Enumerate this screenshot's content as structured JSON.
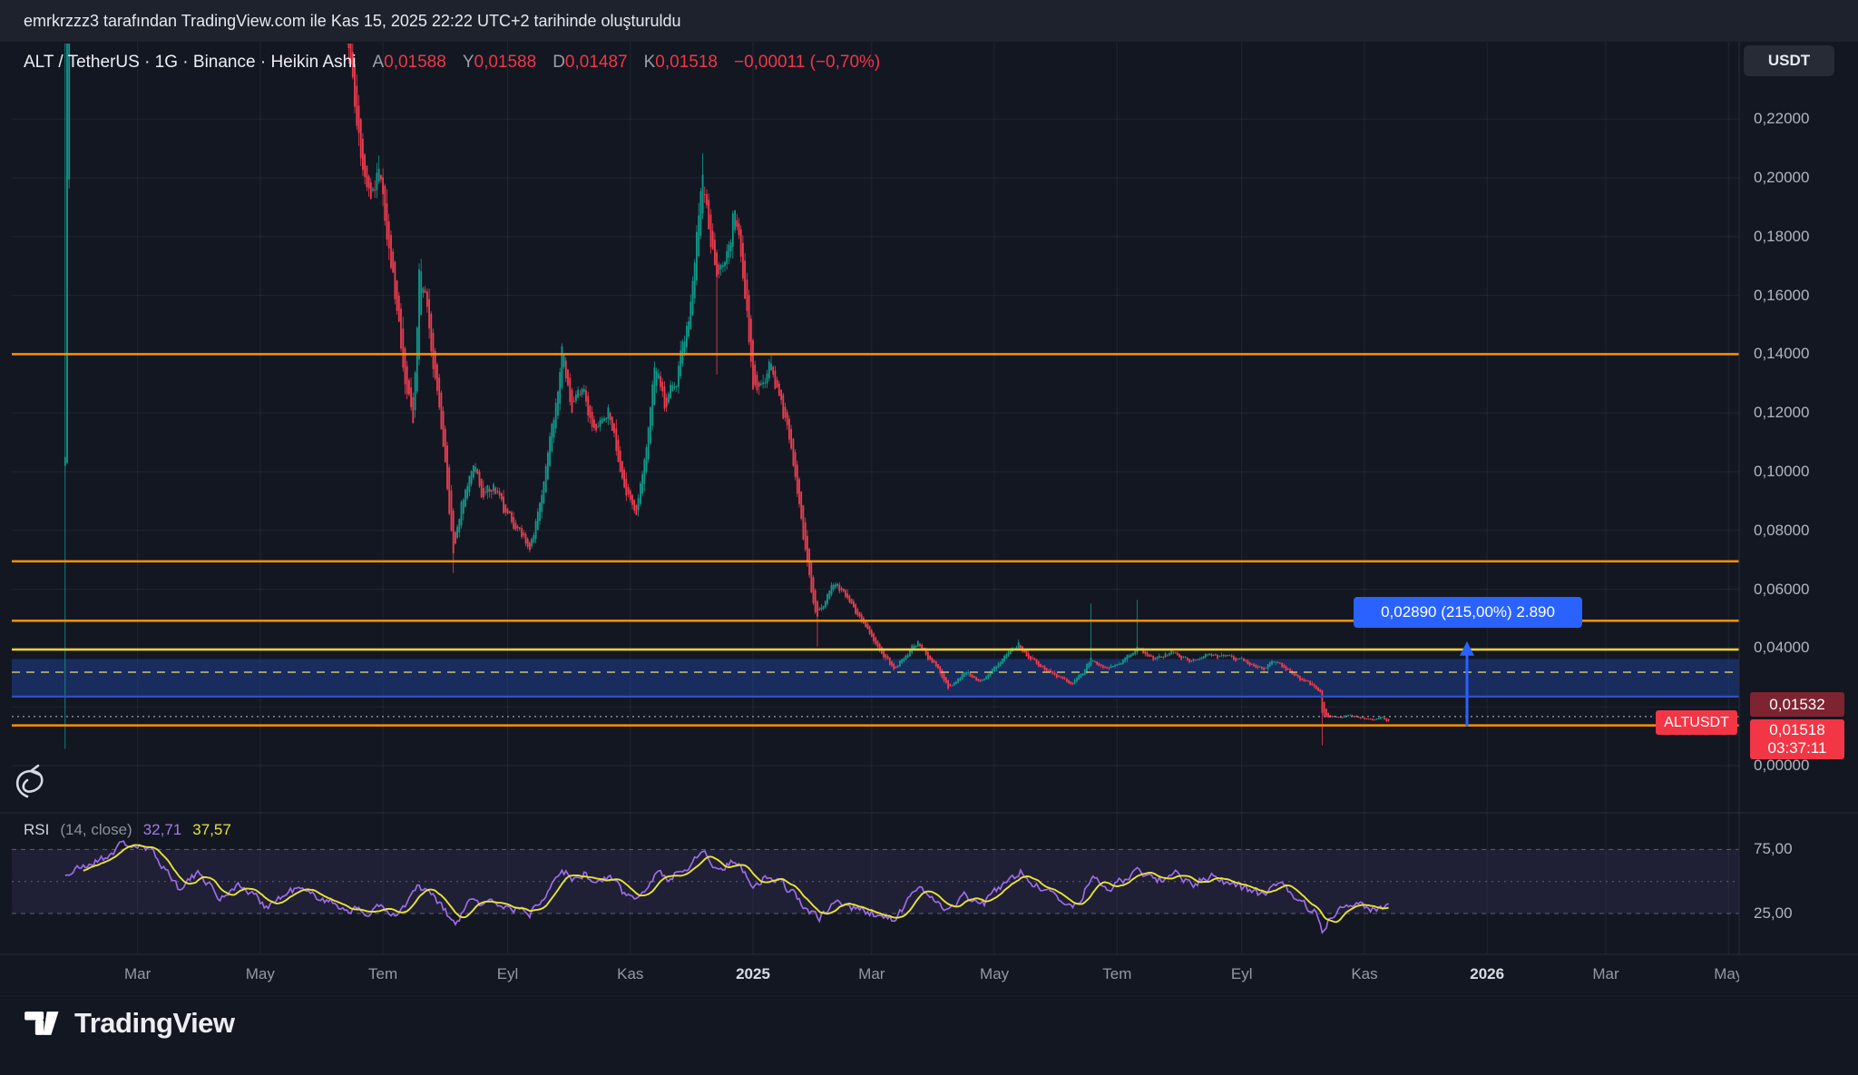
{
  "attribution": {
    "text": "emrkrzzz3 tarafından TradingView.com ile Kas 15, 2025 22:22 UTC+2 tarihinde oluşturuldu"
  },
  "header": {
    "symbol_title": "ALT / TetherUS · 1G · Binance · Heikin Ashi",
    "ohlc": [
      {
        "label": "A",
        "value": "0,01588"
      },
      {
        "label": "Y",
        "value": "0,01588"
      },
      {
        "label": "D",
        "value": "0,01487"
      },
      {
        "label": "K",
        "value": "0,01518"
      }
    ],
    "change": "−0,00011 (−0,70%)",
    "currency_button": "USDT"
  },
  "price_scale": {
    "ticks": [
      {
        "text": "0,22000",
        "price": 0.22
      },
      {
        "text": "0,20000",
        "price": 0.2
      },
      {
        "text": "0,18000",
        "price": 0.18
      },
      {
        "text": "0,16000",
        "price": 0.16
      },
      {
        "text": "0,14000",
        "price": 0.14
      },
      {
        "text": "0,12000",
        "price": 0.12
      },
      {
        "text": "0,10000",
        "price": 0.1
      },
      {
        "text": "0,08000",
        "price": 0.08
      },
      {
        "text": "0,06000",
        "price": 0.06
      },
      {
        "text": "0,04000",
        "price": 0.04
      },
      {
        "text": "0,00000",
        "price": 0.0
      }
    ],
    "badges": {
      "line_label": "0,01532",
      "last_price": "0,01518",
      "countdown": "03:37:11",
      "symbol": "ALTUSDT"
    }
  },
  "rsi": {
    "title": "RSI",
    "params": "(14, close)",
    "value_main": "32,71",
    "value_ma": "37,57",
    "ticks": [
      {
        "text": "75,00",
        "value": 75
      },
      {
        "text": "25,00",
        "value": 25
      }
    ]
  },
  "measure": {
    "label": "0,02890 (215,00%) 2.890",
    "from_price": 0.01344,
    "to_price": 0.04234,
    "day": 697
  },
  "time_axis": {
    "ticks": [
      {
        "label": "Mar",
        "day": 36
      },
      {
        "label": "May",
        "day": 97
      },
      {
        "label": "Tem",
        "day": 158
      },
      {
        "label": "Eyl",
        "day": 220
      },
      {
        "label": "Kas",
        "day": 281
      },
      {
        "label": "2025",
        "day": 342,
        "major": true
      },
      {
        "label": "Mar",
        "day": 401
      },
      {
        "label": "May",
        "day": 462
      },
      {
        "label": "Tem",
        "day": 523
      },
      {
        "label": "Eyl",
        "day": 585
      },
      {
        "label": "Kas",
        "day": 646
      },
      {
        "label": "2026",
        "day": 707,
        "major": true
      },
      {
        "label": "Mar",
        "day": 766
      },
      {
        "label": "May",
        "day": 827
      }
    ]
  },
  "logo": {
    "text": "TradingView"
  },
  "colors": {
    "background": "#131722",
    "panel": "#1e222d",
    "up": "#109a8c",
    "down": "#ef3d4f",
    "orange_level": "#ff9100",
    "yellow_level": "#f5d327",
    "yellow_dashed": "#cdc06d",
    "blue_level": "#2b50c9",
    "zone_fill": "rgba(29,65,154,0.5)",
    "measure_blue": "#2962ff",
    "rsi_line": "#9b6ce6",
    "rsi_ma": "#e8e337",
    "badge_red": "#f23645",
    "badge_maroon": "#7e2430",
    "grid": "rgba(255,255,255,0.06)"
  },
  "chart_data": {
    "type": "candlestick",
    "meta": {
      "pair": "ALT / TetherUS",
      "symbol": "ALTUSDT",
      "interval": "1G",
      "exchange": "Binance",
      "chart_style": "Heikin Ashi",
      "quote_currency": "USDT",
      "author": "emrkrzzz3",
      "created": "Kas 15, 2025 22:22 UTC+2",
      "last_ohlc": {
        "open": 0.01588,
        "high": 0.01588,
        "low": 0.01487,
        "close": 0.01518,
        "change": -0.00011,
        "change_pct": -0.7
      }
    },
    "x_axis": {
      "start_date": "2024-01-25",
      "last_candle_date": "2025-11-14",
      "visible_end": "2026-05-15",
      "days_total": 659
    },
    "y_axis": {
      "min": 0.0,
      "max": 0.2457,
      "tick_interval": 0.02
    },
    "close_anchors": [
      [
        0,
        0.105
      ],
      [
        1,
        0.295
      ],
      [
        20,
        0.4
      ],
      [
        35,
        0.5
      ],
      [
        50,
        0.42
      ],
      [
        70,
        0.34
      ],
      [
        95,
        0.3
      ],
      [
        120,
        0.275
      ],
      [
        135,
        0.262
      ],
      [
        140,
        0.243
      ],
      [
        146,
        0.212
      ],
      [
        151,
        0.193
      ],
      [
        156,
        0.204
      ],
      [
        161,
        0.176
      ],
      [
        166,
        0.15
      ],
      [
        170,
        0.128
      ],
      [
        173,
        0.118
      ],
      [
        176,
        0.168
      ],
      [
        181,
        0.15
      ],
      [
        186,
        0.121
      ],
      [
        190,
        0.095
      ],
      [
        193,
        0.0705
      ],
      [
        197,
        0.09
      ],
      [
        203,
        0.102
      ],
      [
        208,
        0.09
      ],
      [
        213,
        0.096
      ],
      [
        219,
        0.085
      ],
      [
        225,
        0.081
      ],
      [
        231,
        0.0727
      ],
      [
        238,
        0.096
      ],
      [
        243,
        0.118
      ],
      [
        247,
        0.143
      ],
      [
        252,
        0.12
      ],
      [
        258,
        0.127
      ],
      [
        264,
        0.112
      ],
      [
        270,
        0.122
      ],
      [
        276,
        0.101
      ],
      [
        284,
        0.0846
      ],
      [
        289,
        0.11
      ],
      [
        293,
        0.134
      ],
      [
        298,
        0.122
      ],
      [
        304,
        0.132
      ],
      [
        310,
        0.154
      ],
      [
        314,
        0.178
      ],
      [
        317,
        0.205
      ],
      [
        320,
        0.185
      ],
      [
        324,
        0.163
      ],
      [
        328,
        0.172
      ],
      [
        333,
        0.19
      ],
      [
        338,
        0.16
      ],
      [
        342,
        0.128
      ],
      [
        347,
        0.131
      ],
      [
        351,
        0.137
      ],
      [
        356,
        0.122
      ],
      [
        361,
        0.108
      ],
      [
        366,
        0.082
      ],
      [
        371,
        0.06
      ],
      [
        374,
        0.0505
      ],
      [
        379,
        0.058
      ],
      [
        383,
        0.062
      ],
      [
        389,
        0.0555
      ],
      [
        394,
        0.05
      ],
      [
        398,
        0.047
      ],
      [
        403,
        0.042
      ],
      [
        408,
        0.0365
      ],
      [
        412,
        0.0325
      ],
      [
        417,
        0.037
      ],
      [
        421,
        0.04
      ],
      [
        424,
        0.0423
      ],
      [
        429,
        0.037
      ],
      [
        433,
        0.034
      ],
      [
        437,
        0.029
      ],
      [
        439,
        0.0263
      ],
      [
        444,
        0.03
      ],
      [
        448,
        0.032
      ],
      [
        453,
        0.0285
      ],
      [
        457,
        0.029
      ],
      [
        461,
        0.033
      ],
      [
        466,
        0.036
      ],
      [
        471,
        0.039
      ],
      [
        474,
        0.0413
      ],
      [
        479,
        0.037
      ],
      [
        483,
        0.035
      ],
      [
        488,
        0.0325
      ],
      [
        492,
        0.031
      ],
      [
        497,
        0.029
      ],
      [
        501,
        0.0283
      ],
      [
        506,
        0.031
      ],
      [
        510,
        0.036
      ],
      [
        514,
        0.034
      ],
      [
        518,
        0.0335
      ],
      [
        523,
        0.035
      ],
      [
        528,
        0.037
      ],
      [
        533,
        0.04
      ],
      [
        538,
        0.0375
      ],
      [
        542,
        0.036
      ],
      [
        547,
        0.0375
      ],
      [
        551,
        0.0385
      ],
      [
        556,
        0.0365
      ],
      [
        560,
        0.0355
      ],
      [
        564,
        0.037
      ],
      [
        569,
        0.0386
      ],
      [
        573,
        0.0372
      ],
      [
        578,
        0.0365
      ],
      [
        582,
        0.0358
      ],
      [
        587,
        0.0352
      ],
      [
        591,
        0.034
      ],
      [
        595,
        0.0332
      ],
      [
        600,
        0.0345
      ],
      [
        604,
        0.0355
      ],
      [
        609,
        0.032
      ],
      [
        613,
        0.0298
      ],
      [
        618,
        0.028
      ],
      [
        622,
        0.0262
      ],
      [
        624,
        0.0256
      ],
      [
        625,
        0.018
      ],
      [
        627,
        0.0165
      ],
      [
        630,
        0.0162
      ],
      [
        634,
        0.0168
      ],
      [
        639,
        0.0172
      ],
      [
        643,
        0.0165
      ],
      [
        648,
        0.016
      ],
      [
        651,
        0.0158
      ],
      [
        654,
        0.0163
      ],
      [
        658,
        0.01518
      ]
    ],
    "events": [
      {
        "day": 0,
        "o": 0.102,
        "h": 0.26,
        "l": 0.0057,
        "c": 0.105,
        "note": "listing-day full-range wick"
      },
      {
        "day": 193,
        "l": 0.0655,
        "note": "Aug 2024 capitulation wick"
      },
      {
        "day": 317,
        "h": 0.2084,
        "note": "Dec 2024 cycle top"
      },
      {
        "day": 324,
        "l": 0.133
      },
      {
        "day": 374,
        "l": 0.0405
      },
      {
        "day": 510,
        "h": 0.0552,
        "note": "Jun 2025 spike"
      },
      {
        "day": 533,
        "h": 0.0564,
        "note": "Jul 2025 spike"
      },
      {
        "day": 625,
        "o": 0.0256,
        "h": 0.0258,
        "l": 0.0069,
        "c": 0.018,
        "note": "Oct 10 2025 crash wick"
      },
      {
        "day": 658,
        "o": 0.01588,
        "h": 0.01588,
        "l": 0.01487,
        "c": 0.01518,
        "note": "last candle"
      }
    ],
    "levels": [
      {
        "price": 0.14,
        "color": "#ff9100",
        "style": "solid",
        "width": 2.5
      },
      {
        "price": 0.0695,
        "color": "#ff9100",
        "style": "solid",
        "width": 2.5
      },
      {
        "price": 0.0493,
        "color": "#ff9100",
        "style": "solid",
        "width": 2.5
      },
      {
        "price": 0.0395,
        "color": "#f5d327",
        "style": "solid",
        "width": 2.6
      },
      {
        "price": 0.0318,
        "color": "#cdc06d",
        "style": "dashed",
        "width": 1.6
      },
      {
        "price": 0.0235,
        "color": "#2b50c9",
        "style": "solid",
        "width": 2.2
      },
      {
        "price": 0.0167,
        "color": "#9aa0aa",
        "style": "dotted",
        "width": 1.2
      },
      {
        "price": 0.0137,
        "color": "#ff9100",
        "style": "solid",
        "width": 2.5
      }
    ],
    "zone": {
      "top": 0.0363,
      "bottom": 0.0235,
      "fill": "rgba(29,65,154,0.5)"
    },
    "rsi_panel": {
      "indicator": "RSI (14, close)",
      "upper_band": 75,
      "middle": 50,
      "lower_band": 25,
      "last": 32.71,
      "ma_last": 37.57,
      "anchors": [
        [
          0,
          55
        ],
        [
          10,
          62
        ],
        [
          21,
          70
        ],
        [
          29,
          80
        ],
        [
          38,
          76
        ],
        [
          44,
          72
        ],
        [
          50,
          60
        ],
        [
          56,
          46
        ],
        [
          62,
          52
        ],
        [
          68,
          56
        ],
        [
          77,
          36
        ],
        [
          85,
          48
        ],
        [
          93,
          40
        ],
        [
          100,
          31
        ],
        [
          108,
          38
        ],
        [
          115,
          45
        ],
        [
          121,
          40
        ],
        [
          127,
          38
        ],
        [
          133,
          33
        ],
        [
          138,
          30
        ],
        [
          145,
          27
        ],
        [
          150,
          24
        ],
        [
          156,
          33
        ],
        [
          162,
          21
        ],
        [
          168,
          28
        ],
        [
          175,
          46
        ],
        [
          181,
          40
        ],
        [
          186,
          33
        ],
        [
          191,
          22
        ],
        [
          194,
          15
        ],
        [
          199,
          30
        ],
        [
          203,
          36
        ],
        [
          208,
          31
        ],
        [
          213,
          35
        ],
        [
          219,
          30
        ],
        [
          225,
          28
        ],
        [
          231,
          25
        ],
        [
          238,
          40
        ],
        [
          247,
          62
        ],
        [
          252,
          50
        ],
        [
          258,
          56
        ],
        [
          264,
          48
        ],
        [
          270,
          54
        ],
        [
          277,
          42
        ],
        [
          284,
          35
        ],
        [
          290,
          50
        ],
        [
          295,
          58
        ],
        [
          300,
          52
        ],
        [
          306,
          58
        ],
        [
          312,
          66
        ],
        [
          317,
          76
        ],
        [
          321,
          64
        ],
        [
          325,
          58
        ],
        [
          329,
          63
        ],
        [
          333,
          68
        ],
        [
          338,
          56
        ],
        [
          342,
          47
        ],
        [
          347,
          52
        ],
        [
          351,
          55
        ],
        [
          357,
          47
        ],
        [
          361,
          43
        ],
        [
          367,
          32
        ],
        [
          371,
          25
        ],
        [
          375,
          20
        ],
        [
          380,
          30
        ],
        [
          384,
          35
        ],
        [
          389,
          31
        ],
        [
          394,
          28
        ],
        [
          399,
          26
        ],
        [
          404,
          24
        ],
        [
          409,
          21
        ],
        [
          413,
          19
        ],
        [
          418,
          32
        ],
        [
          424,
          47
        ],
        [
          428,
          42
        ],
        [
          433,
          37
        ],
        [
          437,
          30
        ],
        [
          440,
          27
        ],
        [
          444,
          34
        ],
        [
          448,
          40
        ],
        [
          452,
          35
        ],
        [
          457,
          33
        ],
        [
          461,
          40
        ],
        [
          466,
          47
        ],
        [
          471,
          52
        ],
        [
          475,
          58
        ],
        [
          480,
          50
        ],
        [
          484,
          46
        ],
        [
          489,
          41
        ],
        [
          493,
          38
        ],
        [
          498,
          34
        ],
        [
          502,
          31
        ],
        [
          506,
          40
        ],
        [
          510,
          53
        ],
        [
          515,
          48
        ],
        [
          519,
          45
        ],
        [
          523,
          48
        ],
        [
          528,
          52
        ],
        [
          533,
          62
        ],
        [
          538,
          54
        ],
        [
          543,
          50
        ],
        [
          548,
          54
        ],
        [
          552,
          57
        ],
        [
          557,
          50
        ],
        [
          561,
          47
        ],
        [
          565,
          52
        ],
        [
          570,
          55
        ],
        [
          574,
          51
        ],
        [
          579,
          48
        ],
        [
          583,
          46
        ],
        [
          588,
          44
        ],
        [
          592,
          41
        ],
        [
          596,
          39
        ],
        [
          601,
          45
        ],
        [
          605,
          48
        ],
        [
          609,
          40
        ],
        [
          614,
          34
        ],
        [
          618,
          30
        ],
        [
          622,
          26
        ],
        [
          625,
          12
        ],
        [
          628,
          20
        ],
        [
          632,
          27
        ],
        [
          637,
          32
        ],
        [
          641,
          35
        ],
        [
          645,
          33
        ],
        [
          649,
          29
        ],
        [
          652,
          27
        ],
        [
          655,
          30
        ],
        [
          658,
          32.71
        ]
      ]
    }
  }
}
